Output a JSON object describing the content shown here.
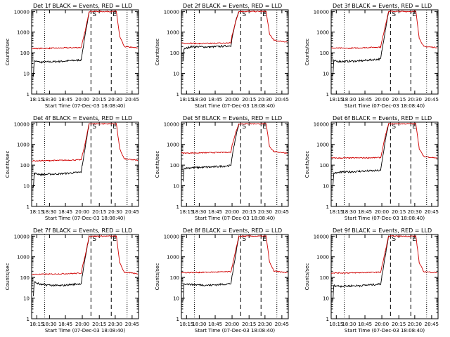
{
  "chart_data": [
    {
      "type": "line",
      "title": "Det 1f BLACK = Events, RED = LLD",
      "xlabel": "Start Time (07-Dec-03 18:08:40)",
      "ylabel": "Counts/sec",
      "yscale": "log",
      "ylim": [
        1,
        12000
      ],
      "xlim": [
        "18:08",
        "20:50"
      ],
      "x_ticks": [
        "18:15",
        "18:30",
        "18:45",
        "20:00",
        "20:15",
        "20:30",
        "20:45"
      ],
      "y_ticks": [
        "1",
        "10",
        "100",
        "1000",
        "10000"
      ],
      "markers": [
        {
          "label": "S",
          "type": "dashed"
        },
        {
          "label": "E",
          "type": "dashed"
        }
      ],
      "series": [
        {
          "color": "#000000",
          "points": [
            [
              "18:11",
              8
            ],
            [
              "18:12",
              40
            ],
            [
              "18:20",
              35
            ],
            [
              "18:40",
              38
            ],
            [
              "19:55",
              45
            ],
            [
              "20:00",
              100
            ],
            [
              "20:03",
              1000
            ],
            [
              "20:06",
              10000
            ]
          ]
        },
        {
          "color": "#d00000",
          "points": [
            [
              "18:08",
              160
            ],
            [
              "18:30",
              165
            ],
            [
              "19:55",
              180
            ],
            [
              "20:00",
              300
            ],
            [
              "20:03",
              1500
            ],
            [
              "20:06",
              10000
            ],
            [
              "20:31",
              10000
            ],
            [
              "20:34",
              600
            ],
            [
              "20:38",
              200
            ],
            [
              "20:50",
              170
            ]
          ]
        }
      ]
    },
    {
      "type": "line",
      "title": "Det 2f BLACK = Events, RED = LLD",
      "xlabel": "Start Time (07-Dec-03 18:08:40)",
      "ylabel": "Counts/sec",
      "yscale": "log",
      "ylim": [
        1,
        12000
      ],
      "xlim": [
        "18:08",
        "20:50"
      ],
      "x_ticks": [
        "18:15",
        "18:30",
        "18:45",
        "20:00",
        "20:15",
        "20:30",
        "20:45"
      ],
      "y_ticks": [
        "1",
        "10",
        "100",
        "1000",
        "10000"
      ],
      "markers": [
        {
          "label": "S",
          "type": "dashed"
        },
        {
          "label": "E",
          "type": "dashed"
        }
      ],
      "series": [
        {
          "color": "#000000",
          "points": [
            [
              "18:11",
              40
            ],
            [
              "18:12",
              150
            ],
            [
              "18:20",
              200
            ],
            [
              "18:40",
              190
            ],
            [
              "19:55",
              220
            ],
            [
              "20:00",
              500
            ],
            [
              "20:03",
              3000
            ],
            [
              "20:06",
              10000
            ]
          ]
        },
        {
          "color": "#d00000",
          "points": [
            [
              "18:08",
              300
            ],
            [
              "18:30",
              280
            ],
            [
              "19:55",
              300
            ],
            [
              "20:00",
              700
            ],
            [
              "20:03",
              3000
            ],
            [
              "20:06",
              10000
            ],
            [
              "20:31",
              10000
            ],
            [
              "20:34",
              800
            ],
            [
              "20:38",
              400
            ],
            [
              "20:50",
              330
            ]
          ]
        }
      ]
    },
    {
      "type": "line",
      "title": "Det 3f BLACK = Events, RED = LLD",
      "xlabel": "Start Time (07-Dec-03 18:08:40)",
      "ylabel": "Counts/sec",
      "yscale": "log",
      "ylim": [
        1,
        12000
      ],
      "xlim": [
        "18:08",
        "20:50"
      ],
      "x_ticks": [
        "18:15",
        "18:30",
        "18:45",
        "20:00",
        "20:15",
        "20:30",
        "20:45"
      ],
      "y_ticks": [
        "1",
        "10",
        "100",
        "1000",
        "10000"
      ],
      "markers": [
        {
          "label": "S",
          "type": "dashed"
        },
        {
          "label": "E",
          "type": "dashed"
        }
      ],
      "series": [
        {
          "color": "#000000",
          "points": [
            [
              "18:11",
              8
            ],
            [
              "18:12",
              40
            ],
            [
              "18:20",
              38
            ],
            [
              "18:40",
              40
            ],
            [
              "19:55",
              50
            ],
            [
              "20:00",
              120
            ],
            [
              "20:03",
              1200
            ],
            [
              "20:06",
              10000
            ]
          ]
        },
        {
          "color": "#d00000",
          "points": [
            [
              "18:08",
              170
            ],
            [
              "18:30",
              165
            ],
            [
              "19:55",
              190
            ],
            [
              "20:00",
              350
            ],
            [
              "20:03",
              2000
            ],
            [
              "20:06",
              10000
            ],
            [
              "20:31",
              10000
            ],
            [
              "20:34",
              500
            ],
            [
              "20:38",
              200
            ],
            [
              "20:50",
              180
            ]
          ]
        }
      ]
    },
    {
      "type": "line",
      "title": "Det 4f BLACK = Events, RED = LLD",
      "xlabel": "Start Time (07-Dec-03 18:08:40)",
      "ylabel": "Counts/sec",
      "yscale": "log",
      "ylim": [
        1,
        12000
      ],
      "xlim": [
        "18:08",
        "20:50"
      ],
      "x_ticks": [
        "18:15",
        "18:30",
        "18:45",
        "20:00",
        "20:15",
        "20:30",
        "20:45"
      ],
      "y_ticks": [
        "1",
        "10",
        "100",
        "1000",
        "10000"
      ],
      "markers": [
        {
          "label": "S",
          "type": "dashed"
        },
        {
          "label": "E",
          "type": "dashed"
        }
      ],
      "series": [
        {
          "color": "#000000",
          "points": [
            [
              "18:11",
              8
            ],
            [
              "18:12",
              40
            ],
            [
              "18:20",
              35
            ],
            [
              "18:40",
              38
            ],
            [
              "19:55",
              45
            ],
            [
              "20:00",
              100
            ],
            [
              "20:03",
              1000
            ],
            [
              "20:06",
              10000
            ]
          ]
        },
        {
          "color": "#d00000",
          "points": [
            [
              "18:08",
              160
            ],
            [
              "18:30",
              165
            ],
            [
              "19:55",
              180
            ],
            [
              "20:00",
              300
            ],
            [
              "20:03",
              1500
            ],
            [
              "20:06",
              10000
            ],
            [
              "20:31",
              10000
            ],
            [
              "20:34",
              600
            ],
            [
              "20:38",
              200
            ],
            [
              "20:50",
              170
            ]
          ]
        }
      ]
    },
    {
      "type": "line",
      "title": "Det 5f BLACK = Events, RED = LLD",
      "xlabel": "Start Time (07-Dec-03 18:08:40)",
      "ylabel": "Counts/sec",
      "yscale": "log",
      "ylim": [
        1,
        12000
      ],
      "xlim": [
        "18:08",
        "20:50"
      ],
      "x_ticks": [
        "18:15",
        "18:30",
        "18:45",
        "20:00",
        "20:15",
        "20:30",
        "20:45"
      ],
      "y_ticks": [
        "1",
        "10",
        "100",
        "1000",
        "10000"
      ],
      "markers": [
        {
          "label": "S",
          "type": "dashed"
        },
        {
          "label": "E",
          "type": "dashed"
        }
      ],
      "series": [
        {
          "color": "#000000",
          "points": [
            [
              "18:11",
              15
            ],
            [
              "18:12",
              70
            ],
            [
              "18:20",
              75
            ],
            [
              "18:40",
              80
            ],
            [
              "19:55",
              95
            ],
            [
              "20:00",
              250
            ],
            [
              "20:03",
              2000
            ],
            [
              "20:06",
              10000
            ]
          ]
        },
        {
          "color": "#d00000",
          "points": [
            [
              "18:08",
              380
            ],
            [
              "18:30",
              390
            ],
            [
              "19:55",
              420
            ],
            [
              "20:00",
              900
            ],
            [
              "20:03",
              3500
            ],
            [
              "20:06",
              10000
            ],
            [
              "20:31",
              10000
            ],
            [
              "20:34",
              800
            ],
            [
              "20:38",
              450
            ],
            [
              "20:50",
              380
            ]
          ]
        }
      ]
    },
    {
      "type": "line",
      "title": "Det 6f BLACK = Events, RED = LLD",
      "xlabel": "Start Time (07-Dec-03 18:08:40)",
      "ylabel": "Counts/sec",
      "yscale": "log",
      "ylim": [
        1,
        12000
      ],
      "xlim": [
        "18:08",
        "20:50"
      ],
      "x_ticks": [
        "18:15",
        "18:30",
        "18:45",
        "20:00",
        "20:15",
        "20:30",
        "20:45"
      ],
      "y_ticks": [
        "1",
        "10",
        "100",
        "1000",
        "10000"
      ],
      "markers": [
        {
          "label": "S",
          "type": "dashed"
        },
        {
          "label": "E",
          "type": "dashed"
        }
      ],
      "series": [
        {
          "color": "#000000",
          "points": [
            [
              "18:11",
              10
            ],
            [
              "18:12",
              40
            ],
            [
              "18:20",
              45
            ],
            [
              "18:40",
              50
            ],
            [
              "19:55",
              55
            ],
            [
              "20:00",
              130
            ],
            [
              "20:03",
              1500
            ],
            [
              "20:06",
              10000
            ]
          ]
        },
        {
          "color": "#d00000",
          "points": [
            [
              "18:08",
              220
            ],
            [
              "18:30",
              220
            ],
            [
              "19:55",
              230
            ],
            [
              "20:00",
              400
            ],
            [
              "20:03",
              2500
            ],
            [
              "20:06",
              10000
            ],
            [
              "20:31",
              10000
            ],
            [
              "20:34",
              600
            ],
            [
              "20:38",
              260
            ],
            [
              "20:50",
              220
            ]
          ]
        }
      ]
    },
    {
      "type": "line",
      "title": "Det 7f BLACK = Events, RED = LLD",
      "xlabel": "Start Time (07-Dec-03 18:08:40)",
      "ylabel": "Counts/sec",
      "yscale": "log",
      "ylim": [
        1,
        12000
      ],
      "xlim": [
        "18:08",
        "20:50"
      ],
      "x_ticks": [
        "18:15",
        "18:30",
        "18:45",
        "20:00",
        "20:15",
        "20:30",
        "20:45"
      ],
      "y_ticks": [
        "1",
        "10",
        "100",
        "1000",
        "10000"
      ],
      "markers": [
        {
          "label": "S",
          "type": "dashed"
        },
        {
          "label": "E",
          "type": "dashed"
        }
      ],
      "series": [
        {
          "color": "#000000",
          "points": [
            [
              "18:11",
              12
            ],
            [
              "18:12",
              60
            ],
            [
              "18:20",
              45
            ],
            [
              "18:40",
              40
            ],
            [
              "19:55",
              50
            ],
            [
              "20:00",
              120
            ],
            [
              "20:03",
              1200
            ],
            [
              "20:06",
              10000
            ]
          ]
        },
        {
          "color": "#d00000",
          "points": [
            [
              "18:08",
              140
            ],
            [
              "18:30",
              145
            ],
            [
              "19:55",
              160
            ],
            [
              "20:00",
              300
            ],
            [
              "20:03",
              1500
            ],
            [
              "20:06",
              10000
            ],
            [
              "20:31",
              10000
            ],
            [
              "20:34",
              500
            ],
            [
              "20:38",
              180
            ],
            [
              "20:50",
              150
            ]
          ]
        }
      ]
    },
    {
      "type": "line",
      "title": "Det 8f BLACK = Events, RED = LLD",
      "xlabel": "Start Time (07-Dec-03 18:08:40)",
      "ylabel": "Counts/sec",
      "yscale": "log",
      "ylim": [
        1,
        12000
      ],
      "xlim": [
        "18:08",
        "20:50"
      ],
      "x_ticks": [
        "18:15",
        "18:30",
        "18:45",
        "20:00",
        "20:15",
        "20:30",
        "20:45"
      ],
      "y_ticks": [
        "1",
        "10",
        "100",
        "1000",
        "10000"
      ],
      "markers": [
        {
          "label": "S",
          "type": "dashed"
        },
        {
          "label": "E",
          "type": "dashed"
        }
      ],
      "series": [
        {
          "color": "#000000",
          "points": [
            [
              "18:11",
              8
            ],
            [
              "18:12",
              50
            ],
            [
              "18:20",
              45
            ],
            [
              "18:40",
              42
            ],
            [
              "19:55",
              50
            ],
            [
              "20:00",
              110
            ],
            [
              "20:03",
              1100
            ],
            [
              "20:06",
              10000
            ]
          ]
        },
        {
          "color": "#d00000",
          "points": [
            [
              "18:08",
              170
            ],
            [
              "18:30",
              175
            ],
            [
              "19:55",
              190
            ],
            [
              "20:00",
              320
            ],
            [
              "20:03",
              1800
            ],
            [
              "20:06",
              10000
            ],
            [
              "20:31",
              10000
            ],
            [
              "20:34",
              550
            ],
            [
              "20:38",
              200
            ],
            [
              "20:50",
              170
            ]
          ]
        }
      ]
    },
    {
      "type": "line",
      "title": "Det 9f BLACK = Events, RED = LLD",
      "xlabel": "Start Time (07-Dec-03 18:08:40)",
      "ylabel": "Counts/sec",
      "yscale": "log",
      "ylim": [
        1,
        12000
      ],
      "xlim": [
        "18:08",
        "20:50"
      ],
      "x_ticks": [
        "18:15",
        "18:30",
        "18:45",
        "20:00",
        "20:15",
        "20:30",
        "20:45"
      ],
      "y_ticks": [
        "1",
        "10",
        "100",
        "1000",
        "10000"
      ],
      "markers": [
        {
          "label": "S",
          "type": "dashed"
        },
        {
          "label": "E",
          "type": "dashed"
        }
      ],
      "series": [
        {
          "color": "#000000",
          "points": [
            [
              "18:11",
              8
            ],
            [
              "18:12",
              40
            ],
            [
              "18:20",
              38
            ],
            [
              "18:40",
              40
            ],
            [
              "19:55",
              48
            ],
            [
              "20:00",
              110
            ],
            [
              "20:03",
              1100
            ],
            [
              "20:06",
              10000
            ]
          ]
        },
        {
          "color": "#d00000",
          "points": [
            [
              "18:08",
              165
            ],
            [
              "18:30",
              165
            ],
            [
              "19:55",
              180
            ],
            [
              "20:00",
              320
            ],
            [
              "20:03",
              1800
            ],
            [
              "20:06",
              10000
            ],
            [
              "20:31",
              10000
            ],
            [
              "20:34",
              500
            ],
            [
              "20:38",
              190
            ],
            [
              "20:50",
              170
            ]
          ]
        }
      ]
    }
  ]
}
